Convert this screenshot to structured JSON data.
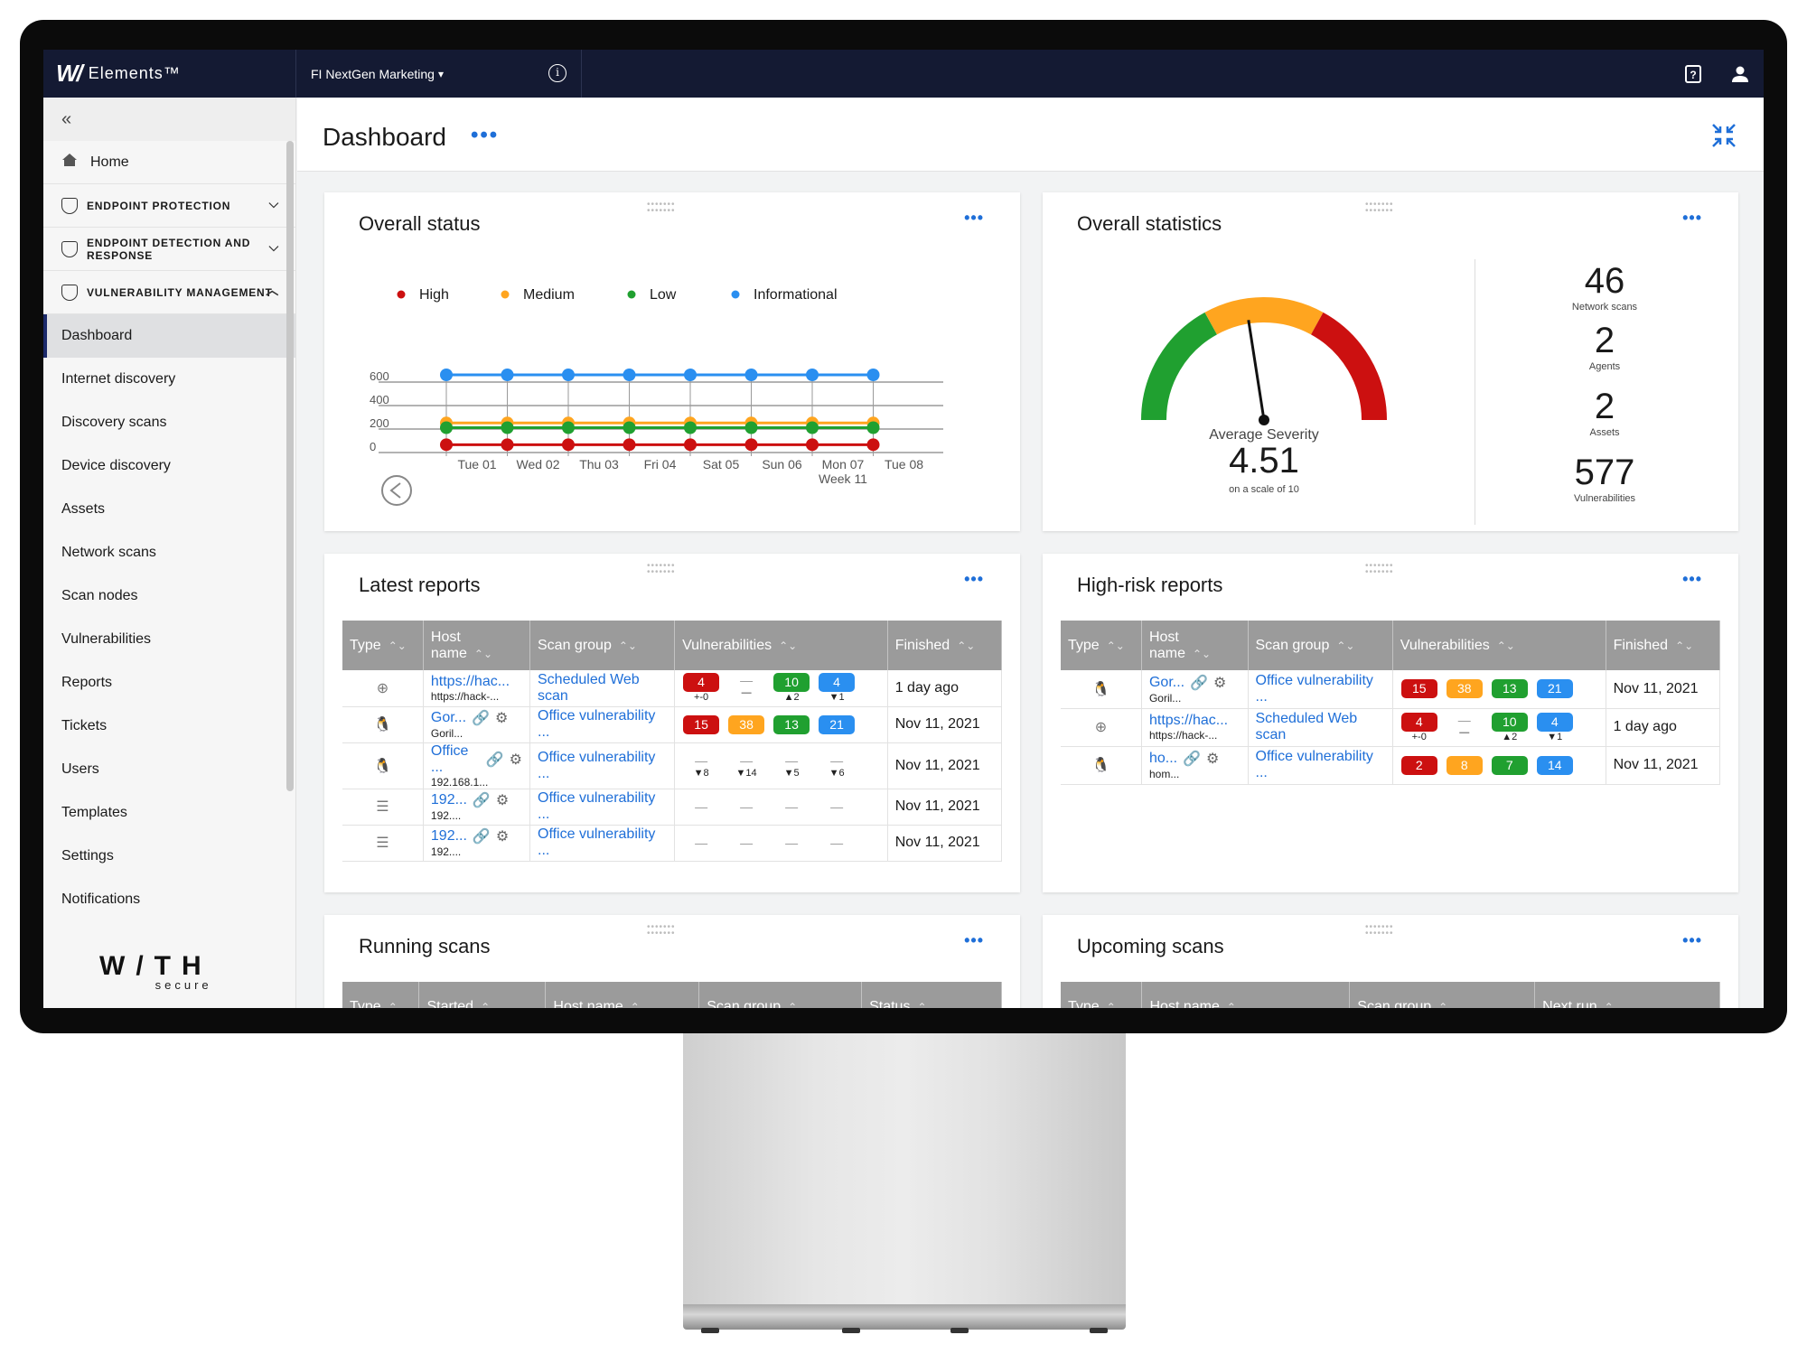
{
  "topbar": {
    "brand_logo": "W/",
    "brand_name": "Elements™",
    "org_name": "FI NextGen Marketing",
    "icons": [
      "help-icon",
      "user-icon"
    ]
  },
  "sidebar": {
    "home": "Home",
    "sections": [
      {
        "label": "ENDPOINT PROTECTION",
        "expanded": false
      },
      {
        "label": "ENDPOINT DETECTION AND RESPONSE",
        "expanded": false
      },
      {
        "label": "VULNERABILITY MANAGEMENT",
        "expanded": true
      }
    ],
    "items": [
      "Dashboard",
      "Internet discovery",
      "Discovery scans",
      "Device discovery",
      "Assets",
      "Network scans",
      "Scan nodes",
      "Vulnerabilities",
      "Reports",
      "Tickets",
      "Users",
      "Templates",
      "Settings",
      "Notifications"
    ],
    "active_item": "Dashboard",
    "footer_logo": "W/TH",
    "footer_sub": "secure"
  },
  "page": {
    "title": "Dashboard",
    "menu": "•••"
  },
  "overall_status": {
    "title": "Overall status",
    "menu": "•••",
    "legend": [
      {
        "name": "High",
        "color": "#cc1010"
      },
      {
        "name": "Medium",
        "color": "#ffa51f"
      },
      {
        "name": "Low",
        "color": "#20a030"
      },
      {
        "name": "Informational",
        "color": "#2a8ff0"
      }
    ],
    "week_label": "Week 11"
  },
  "chart_data": {
    "type": "line",
    "x": [
      "Tue 01",
      "Wed 02",
      "Thu 03",
      "Fri 04",
      "Sat 05",
      "Sun 06",
      "Mon 07",
      "Tue 08"
    ],
    "yticks": [
      0,
      200,
      400,
      600
    ],
    "ylim": [
      0,
      700
    ],
    "series": [
      {
        "name": "High",
        "color": "#cc1010",
        "values": [
          5,
          5,
          5,
          5,
          5,
          5,
          5,
          5
        ]
      },
      {
        "name": "Medium",
        "color": "#ffa51f",
        "values": [
          190,
          190,
          190,
          190,
          190,
          190,
          190,
          190
        ]
      },
      {
        "name": "Low",
        "color": "#20a030",
        "values": [
          150,
          150,
          150,
          150,
          150,
          150,
          150,
          150
        ]
      },
      {
        "name": "Informational",
        "color": "#2a8ff0",
        "values": [
          600,
          600,
          600,
          600,
          600,
          600,
          600,
          600
        ]
      }
    ]
  },
  "overall_statistics": {
    "title": "Overall statistics",
    "menu": "•••",
    "gauge_caption": "Average Severity",
    "gauge_value": "4.51",
    "gauge_fraction": 0.451,
    "gauge_scale": "on a scale of 10",
    "stats": [
      {
        "value": "46",
        "label": "Network scans"
      },
      {
        "value": "2",
        "label": "Agents"
      },
      {
        "value": "2",
        "label": "Assets"
      },
      {
        "value": "577",
        "label": "Vulnerabilities"
      }
    ]
  },
  "latest_reports": {
    "title": "Latest reports",
    "menu": "•••",
    "columns": [
      "Type",
      "Host name",
      "Scan group",
      "Vulnerabilities",
      "Finished"
    ],
    "rows": [
      {
        "type_icon": "globe-icon",
        "host": "https://hac...",
        "host_sub": "https://hack-...",
        "group": "Scheduled Web scan",
        "vulns": [
          "4",
          "—",
          "10",
          "4"
        ],
        "deltas": [
          "+-0",
          "—",
          "▲2",
          "▼1"
        ],
        "finished": "1 day ago"
      },
      {
        "type_icon": "linux-icon",
        "host": "Gor...",
        "host_sub": "Goril...",
        "group": "Office vulnerability ...",
        "vulns": [
          "15",
          "38",
          "13",
          "21"
        ],
        "deltas": [
          "",
          "",
          "",
          ""
        ],
        "finished": "Nov 11, 2021"
      },
      {
        "type_icon": "linux-icon",
        "host": "Office ...",
        "host_sub": "192.168.1...",
        "group": "Office vulnerability ...",
        "vulns": [
          "—",
          "—",
          "—",
          "—"
        ],
        "deltas": [
          "▼8",
          "▼14",
          "▼5",
          "▼6"
        ],
        "finished": "Nov 11, 2021"
      },
      {
        "type_icon": "server-icon",
        "host": "192...",
        "host_sub": "192....",
        "group": "Office vulnerability ...",
        "vulns": [
          "—",
          "—",
          "—",
          "—"
        ],
        "deltas": [
          "",
          "",
          "",
          ""
        ],
        "finished": "Nov 11, 2021"
      },
      {
        "type_icon": "server-icon",
        "host": "192...",
        "host_sub": "192....",
        "group": "Office vulnerability ...",
        "vulns": [
          "—",
          "—",
          "—",
          "—"
        ],
        "deltas": [
          "",
          "",
          "",
          ""
        ],
        "finished": "Nov 11, 2021"
      }
    ]
  },
  "high_risk_reports": {
    "title": "High-risk reports",
    "menu": "•••",
    "columns": [
      "Type",
      "Host name",
      "Scan group",
      "Vulnerabilities",
      "Finished"
    ],
    "rows": [
      {
        "type_icon": "linux-icon",
        "host": "Gor...",
        "host_sub": "Goril...",
        "group": "Office vulnerability ...",
        "vulns": [
          "15",
          "38",
          "13",
          "21"
        ],
        "deltas": [
          "",
          "",
          "",
          ""
        ],
        "finished": "Nov 11, 2021"
      },
      {
        "type_icon": "globe-icon",
        "host": "https://hac...",
        "host_sub": "https://hack-...",
        "group": "Scheduled Web scan",
        "vulns": [
          "4",
          "—",
          "10",
          "4"
        ],
        "deltas": [
          "+-0",
          "—",
          "▲2",
          "▼1"
        ],
        "finished": "1 day ago"
      },
      {
        "type_icon": "linux-icon",
        "host": "ho...",
        "host_sub": "hom...",
        "group": "Office vulnerability ...",
        "vulns": [
          "2",
          "8",
          "7",
          "14"
        ],
        "deltas": [
          "",
          "",
          "",
          ""
        ],
        "finished": "Nov 11, 2021"
      }
    ]
  },
  "running_scans": {
    "title": "Running scans",
    "menu": "•••",
    "columns": [
      "Type",
      "Started",
      "Host name",
      "Scan group",
      "Status"
    ]
  },
  "upcoming_scans": {
    "title": "Upcoming scans",
    "menu": "•••",
    "columns": [
      "Type",
      "Host name",
      "Scan group",
      "Next run"
    ]
  }
}
